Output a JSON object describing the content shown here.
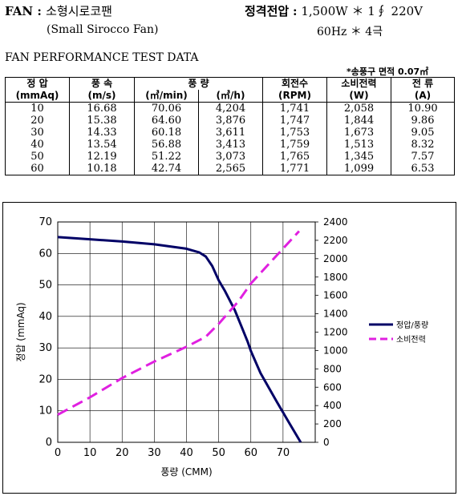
{
  "header": {
    "fan_label": "FAN",
    "colon": ":",
    "fan_name_ko": "소형시로코팬",
    "fan_name_en": "(Small Sirocco Fan)",
    "rating_label": "정격전압",
    "rating_value": "1,500W ＊ 1∮ 220V",
    "freq_value": "60Hz ＊ 4극"
  },
  "section_title": "FAN PERFORMANCE TEST DATA",
  "area_note": "*송풍구 면적 0.07㎡",
  "table": {
    "columns": [
      {
        "name": "정 압",
        "unit": "(mmAq)"
      },
      {
        "name": "풍 속",
        "unit": "(m/s)"
      },
      {
        "name": "풍 량",
        "unit": "(㎥/min)"
      },
      {
        "name": "",
        "unit": "(㎥/h)"
      },
      {
        "name": "회전수",
        "unit": "(RPM)"
      },
      {
        "name": "소비전력",
        "unit": "(W)"
      },
      {
        "name": "전 류",
        "unit": "(A)"
      }
    ],
    "rows": [
      [
        "10",
        "16.68",
        "70.06",
        "4,204",
        "1,741",
        "2,058",
        "10.90"
      ],
      [
        "20",
        "15.38",
        "64.60",
        "3,876",
        "1,747",
        "1,844",
        "9.86"
      ],
      [
        "30",
        "14.33",
        "60.18",
        "3,611",
        "1,753",
        "1,673",
        "9.05"
      ],
      [
        "40",
        "13.54",
        "56.88",
        "3,413",
        "1,759",
        "1,513",
        "8.32"
      ],
      [
        "50",
        "12.19",
        "51.22",
        "3,073",
        "1,765",
        "1,345",
        "7.57"
      ],
      [
        "60",
        "10.18",
        "42.74",
        "2,565",
        "1,771",
        "1,099",
        "6.53"
      ]
    ]
  },
  "chart_data": {
    "type": "line",
    "title": "",
    "xlabel": "풍량 (CMM)",
    "ylabel": "정압 (mmAq)",
    "y2label": "",
    "xlim": [
      0,
      80
    ],
    "ylim": [
      0,
      70
    ],
    "y2lim": [
      0,
      2400
    ],
    "xticks": [
      "0",
      "10",
      "20",
      "30",
      "40",
      "50",
      "60",
      "70"
    ],
    "yticks": [
      "0",
      "10",
      "20",
      "30",
      "40",
      "50",
      "60",
      "70"
    ],
    "y2ticks": [
      "0",
      "200",
      "400",
      "600",
      "800",
      "1000",
      "1200",
      "1400",
      "1600",
      "1800",
      "2000",
      "2200",
      "2400"
    ],
    "grid": true,
    "legend_position": "right",
    "series": [
      {
        "name": "정압/풍량",
        "axis": "left",
        "color": "#000066",
        "dash": "solid",
        "x": [
          0,
          10,
          20,
          30,
          40,
          44,
          46,
          48,
          50,
          52,
          55,
          57,
          59,
          60,
          63,
          68,
          72,
          75.5
        ],
        "y": [
          65.2,
          64.5,
          63.8,
          62.9,
          61.5,
          60.3,
          59,
          56,
          51.5,
          48,
          42,
          37,
          32,
          29,
          22,
          13,
          6,
          0
        ]
      },
      {
        "name": "소비전력",
        "axis": "right",
        "color": "#e020e0",
        "dash": "dashed",
        "x": [
          0,
          10,
          20,
          30,
          40,
          46,
          50,
          56,
          60,
          65,
          70,
          75
        ],
        "y": [
          300,
          490,
          700,
          880,
          1040,
          1150,
          1290,
          1530,
          1730,
          1920,
          2110,
          2300
        ]
      }
    ]
  }
}
